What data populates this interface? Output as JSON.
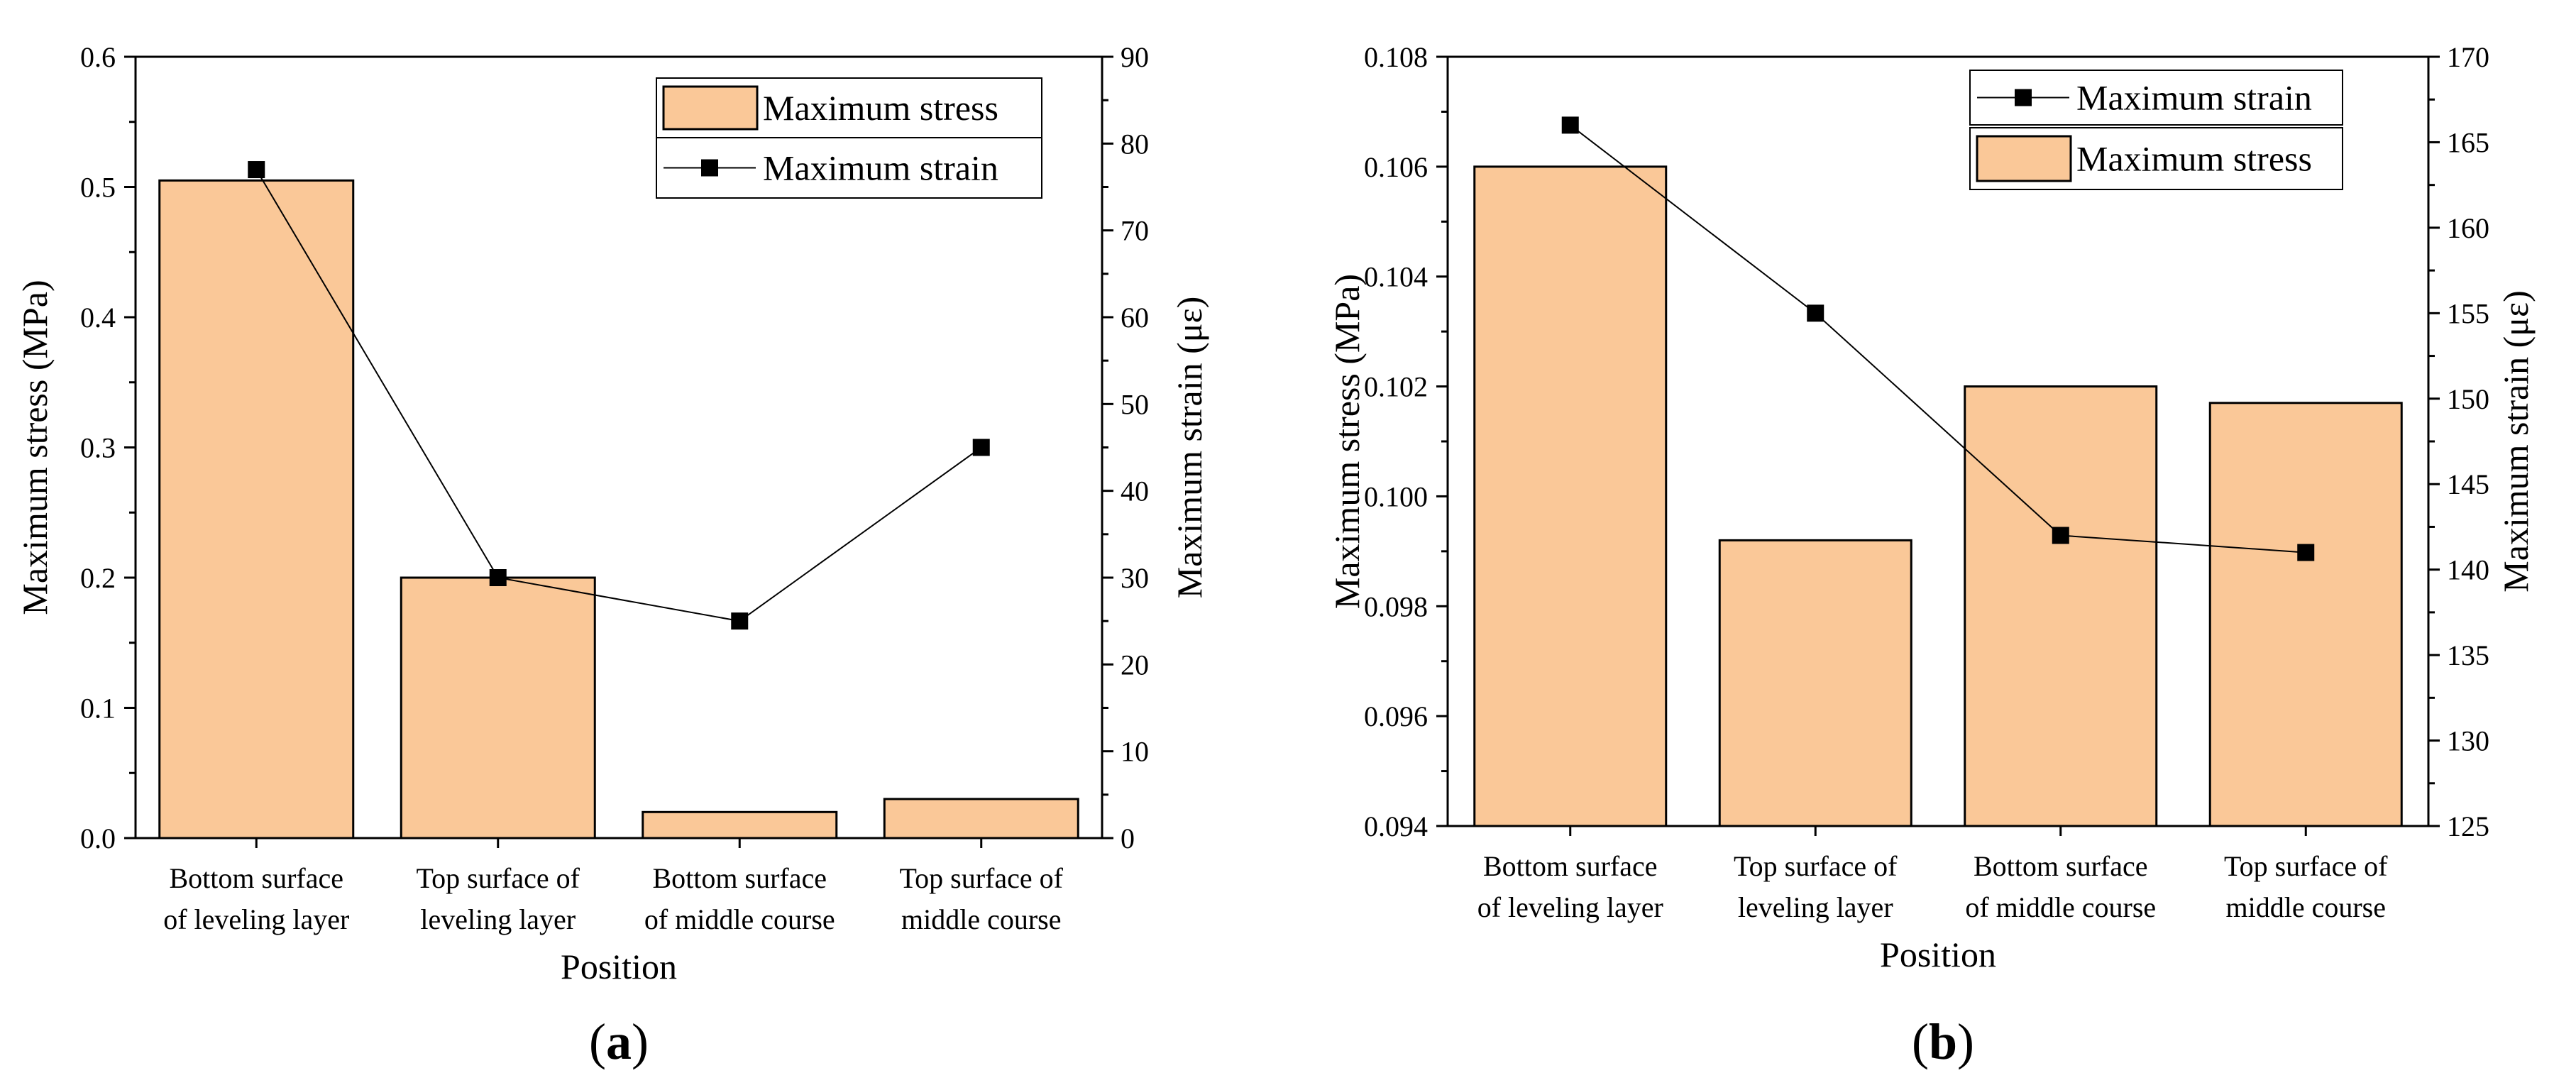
{
  "colors": {
    "bar_fill": "#FAC898",
    "line": "#000000",
    "marker": "#000000",
    "axis": "#000000"
  },
  "chart_data": [
    {
      "type": "bar",
      "panel_label": "(a)",
      "categories": [
        [
          "Bottom surface",
          "of leveling layer"
        ],
        [
          "Top surface of",
          "leveling layer"
        ],
        [
          "Bottom surface",
          "of middle course"
        ],
        [
          "Top surface of",
          "middle course"
        ]
      ],
      "xlabel": "Position",
      "ylabel_left": "Maximum stress (MPa)",
      "ylabel_right": "Maximum strain (με)",
      "ylim_left": [
        0,
        0.6
      ],
      "ylim_right": [
        0,
        90
      ],
      "yticks_left": [
        0.0,
        0.1,
        0.2,
        0.3,
        0.4,
        0.5,
        0.6
      ],
      "yticks_left_labels": [
        "0.0",
        "0.1",
        "0.2",
        "0.3",
        "0.4",
        "0.5",
        "0.6"
      ],
      "yticks_right": [
        0,
        10,
        20,
        30,
        40,
        50,
        60,
        70,
        80,
        90
      ],
      "yticks_right_labels": [
        "0",
        "10",
        "20",
        "30",
        "40",
        "50",
        "60",
        "70",
        "80",
        "90"
      ],
      "series": [
        {
          "name": "Maximum stress",
          "kind": "bar",
          "axis": "left",
          "values": [
            0.505,
            0.2,
            0.02,
            0.03
          ]
        },
        {
          "name": "Maximum strain",
          "kind": "line",
          "axis": "right",
          "values": [
            77,
            30,
            25,
            45
          ]
        }
      ],
      "legend_order": [
        "Maximum stress",
        "Maximum strain"
      ],
      "legend": "top-right",
      "grid": false
    },
    {
      "type": "bar",
      "panel_label": "(b)",
      "categories": [
        [
          "Bottom surface",
          "of leveling layer"
        ],
        [
          "Top surface of",
          "leveling layer"
        ],
        [
          "Bottom surface",
          "of middle course"
        ],
        [
          "Top surface of",
          "middle course"
        ]
      ],
      "xlabel": "Position",
      "ylabel_left": "Maximum stress (MPa)",
      "ylabel_right": "Maximum strain (με)",
      "ylim_left": [
        0.094,
        0.108
      ],
      "ylim_right": [
        125,
        170
      ],
      "yticks_left": [
        0.094,
        0.096,
        0.098,
        0.1,
        0.102,
        0.104,
        0.106,
        0.108
      ],
      "yticks_left_labels": [
        "0.094",
        "0.096",
        "0.098",
        "0.100",
        "0.102",
        "0.104",
        "0.106",
        "0.108"
      ],
      "yticks_right": [
        125,
        130,
        135,
        140,
        145,
        150,
        155,
        160,
        165,
        170
      ],
      "yticks_right_labels": [
        "125",
        "130",
        "135",
        "140",
        "145",
        "150",
        "155",
        "160",
        "165",
        "170"
      ],
      "series": [
        {
          "name": "Maximum stress",
          "kind": "bar",
          "axis": "left",
          "values": [
            0.106,
            0.0992,
            0.102,
            0.1017
          ]
        },
        {
          "name": "Maximum strain",
          "kind": "line",
          "axis": "right",
          "values": [
            166,
            155,
            142,
            141
          ]
        }
      ],
      "legend_order": [
        "Maximum strain",
        "Maximum stress"
      ],
      "legend": "top-right",
      "grid": false
    }
  ]
}
